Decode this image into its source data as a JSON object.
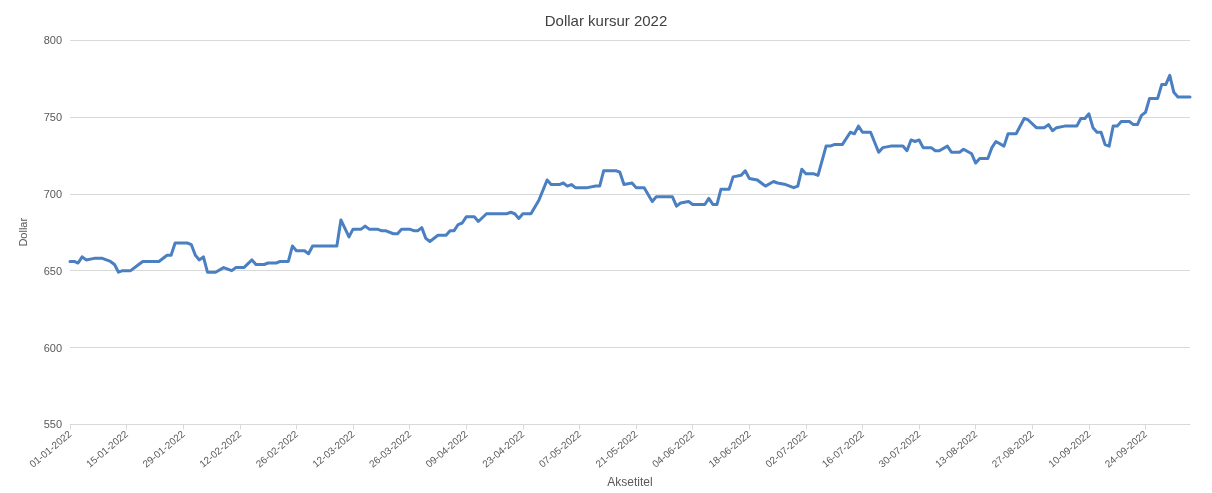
{
  "chart_data": {
    "type": "line",
    "title": "Dollar kursur 2022",
    "xlabel": "Aksetitel",
    "ylabel": "Dollar",
    "x": [
      "2022-01-01",
      "2022-01-02",
      "2022-01-03",
      "2022-01-04",
      "2022-01-05",
      "2022-01-07",
      "2022-01-09",
      "2022-01-11",
      "2022-01-12",
      "2022-01-13",
      "2022-01-14",
      "2022-01-16",
      "2022-01-18",
      "2022-01-19",
      "2022-01-23",
      "2022-01-25",
      "2022-01-26",
      "2022-01-27",
      "2022-01-30",
      "2022-01-31",
      "2022-02-01",
      "2022-02-02",
      "2022-02-03",
      "2022-02-04",
      "2022-02-06",
      "2022-02-08",
      "2022-02-10",
      "2022-02-11",
      "2022-02-13",
      "2022-02-15",
      "2022-02-16",
      "2022-02-18",
      "2022-02-19",
      "2022-02-21",
      "2022-02-22",
      "2022-02-24",
      "2022-02-25",
      "2022-02-26",
      "2022-02-28",
      "2022-03-01",
      "2022-03-02",
      "2022-03-08",
      "2022-03-09",
      "2022-03-11",
      "2022-03-12",
      "2022-03-14",
      "2022-03-15",
      "2022-03-16",
      "2022-03-18",
      "2022-03-19",
      "2022-03-20",
      "2022-03-22",
      "2022-03-23",
      "2022-03-24",
      "2022-03-26",
      "2022-03-27",
      "2022-03-28",
      "2022-03-29",
      "2022-03-30",
      "2022-03-31",
      "2022-04-02",
      "2022-04-04",
      "2022-04-05",
      "2022-04-06",
      "2022-04-07",
      "2022-04-08",
      "2022-04-09",
      "2022-04-11",
      "2022-04-12",
      "2022-04-14",
      "2022-04-19",
      "2022-04-20",
      "2022-04-21",
      "2022-04-22",
      "2022-04-23",
      "2022-04-25",
      "2022-04-27",
      "2022-04-29",
      "2022-04-30",
      "2022-05-02",
      "2022-05-03",
      "2022-05-04",
      "2022-05-05",
      "2022-05-06",
      "2022-05-09",
      "2022-05-11",
      "2022-05-12",
      "2022-05-13",
      "2022-05-16",
      "2022-05-17",
      "2022-05-18",
      "2022-05-20",
      "2022-05-21",
      "2022-05-23",
      "2022-05-25",
      "2022-05-26",
      "2022-05-30",
      "2022-05-31",
      "2022-06-01",
      "2022-06-03",
      "2022-06-04",
      "2022-06-07",
      "2022-06-08",
      "2022-06-09",
      "2022-06-10",
      "2022-06-11",
      "2022-06-13",
      "2022-06-14",
      "2022-06-16",
      "2022-06-17",
      "2022-06-18",
      "2022-06-20",
      "2022-06-22",
      "2022-06-24",
      "2022-06-25",
      "2022-06-27",
      "2022-06-29",
      "2022-06-30",
      "2022-07-01",
      "2022-07-02",
      "2022-07-04",
      "2022-07-05",
      "2022-07-07",
      "2022-07-08",
      "2022-07-09",
      "2022-07-11",
      "2022-07-13",
      "2022-07-14",
      "2022-07-15",
      "2022-07-16",
      "2022-07-18",
      "2022-07-20",
      "2022-07-21",
      "2022-07-23",
      "2022-07-26",
      "2022-07-27",
      "2022-07-28",
      "2022-07-29",
      "2022-07-30",
      "2022-07-31",
      "2022-08-02",
      "2022-08-03",
      "2022-08-04",
      "2022-08-06",
      "2022-08-07",
      "2022-08-09",
      "2022-08-10",
      "2022-08-12",
      "2022-08-13",
      "2022-08-14",
      "2022-08-16",
      "2022-08-17",
      "2022-08-18",
      "2022-08-20",
      "2022-08-21",
      "2022-08-23",
      "2022-08-25",
      "2022-08-26",
      "2022-08-28",
      "2022-08-30",
      "2022-08-31",
      "2022-09-01",
      "2022-09-02",
      "2022-09-04",
      "2022-09-07",
      "2022-09-08",
      "2022-09-09",
      "2022-09-10",
      "2022-09-11",
      "2022-09-12",
      "2022-09-13",
      "2022-09-14",
      "2022-09-15",
      "2022-09-16",
      "2022-09-17",
      "2022-09-18",
      "2022-09-20",
      "2022-09-21",
      "2022-09-22",
      "2022-09-23",
      "2022-09-24",
      "2022-09-25",
      "2022-09-27",
      "2022-09-28",
      "2022-09-29",
      "2022-09-30",
      "2022-10-01",
      "2022-10-02",
      "2022-10-05"
    ],
    "series": [
      {
        "color": "#4a7fc1",
        "values": [
          656,
          656,
          655,
          659,
          657,
          658,
          658,
          656,
          654,
          649,
          650,
          650,
          654,
          656,
          656,
          660,
          660,
          668,
          668,
          667,
          660,
          657,
          659,
          649,
          649,
          652,
          650,
          652,
          652,
          657,
          654,
          654,
          655,
          655,
          656,
          656,
          666,
          663,
          663,
          661,
          666,
          666,
          683,
          672,
          677,
          677,
          679,
          677,
          677,
          676,
          676,
          674,
          674,
          677,
          677,
          676,
          676,
          678,
          671,
          669,
          673,
          673,
          676,
          676,
          680,
          681,
          685,
          685,
          682,
          687,
          687,
          688,
          687,
          684,
          687,
          687,
          696,
          709,
          706,
          706,
          707,
          705,
          706,
          704,
          704,
          705,
          705,
          715,
          715,
          714,
          706,
          707,
          704,
          704,
          695,
          698,
          698,
          692,
          694,
          695,
          693,
          693,
          697,
          693,
          693,
          703,
          703,
          711,
          712,
          715,
          710,
          709,
          705,
          708,
          707,
          706,
          704,
          705,
          716,
          713,
          713,
          712,
          731,
          731,
          732,
          732,
          740,
          739,
          744,
          740,
          740,
          727,
          730,
          731,
          731,
          728,
          735,
          734,
          735,
          730,
          730,
          728,
          728,
          731,
          727,
          727,
          729,
          726,
          720,
          723,
          723,
          730,
          734,
          731,
          739,
          739,
          749,
          748,
          743,
          743,
          745,
          741,
          743,
          744,
          744,
          749,
          749,
          752,
          743,
          740,
          740,
          732,
          731,
          744,
          744,
          747,
          747,
          745,
          745,
          751,
          753,
          762,
          762,
          771,
          771,
          777,
          766,
          763,
          763
        ]
      }
    ],
    "xlim": [
      "2022-01-01",
      "2022-10-05"
    ],
    "xticks": [
      {
        "value": "2022-01-01",
        "label": "01-01-2022"
      },
      {
        "value": "2022-01-15",
        "label": "15-01-2022"
      },
      {
        "value": "2022-01-29",
        "label": "29-01-2022"
      },
      {
        "value": "2022-02-12",
        "label": "12-02-2022"
      },
      {
        "value": "2022-02-26",
        "label": "26-02-2022"
      },
      {
        "value": "2022-03-12",
        "label": "12-03-2022"
      },
      {
        "value": "2022-03-26",
        "label": "26-03-2022"
      },
      {
        "value": "2022-04-09",
        "label": "09-04-2022"
      },
      {
        "value": "2022-04-23",
        "label": "23-04-2022"
      },
      {
        "value": "2022-05-07",
        "label": "07-05-2022"
      },
      {
        "value": "2022-05-21",
        "label": "21-05-2022"
      },
      {
        "value": "2022-06-04",
        "label": "04-06-2022"
      },
      {
        "value": "2022-06-18",
        "label": "18-06-2022"
      },
      {
        "value": "2022-07-02",
        "label": "02-07-2022"
      },
      {
        "value": "2022-07-16",
        "label": "16-07-2022"
      },
      {
        "value": "2022-07-30",
        "label": "30-07-2022"
      },
      {
        "value": "2022-08-13",
        "label": "13-08-2022"
      },
      {
        "value": "2022-08-27",
        "label": "27-08-2022"
      },
      {
        "value": "2022-09-10",
        "label": "10-09-2022"
      },
      {
        "value": "2022-09-24",
        "label": "24-09-2022"
      }
    ],
    "ylim": [
      550,
      800
    ],
    "yticks": [
      550,
      600,
      650,
      700,
      750,
      800
    ],
    "grid": "y",
    "marker": "none",
    "line_style": "solid"
  }
}
